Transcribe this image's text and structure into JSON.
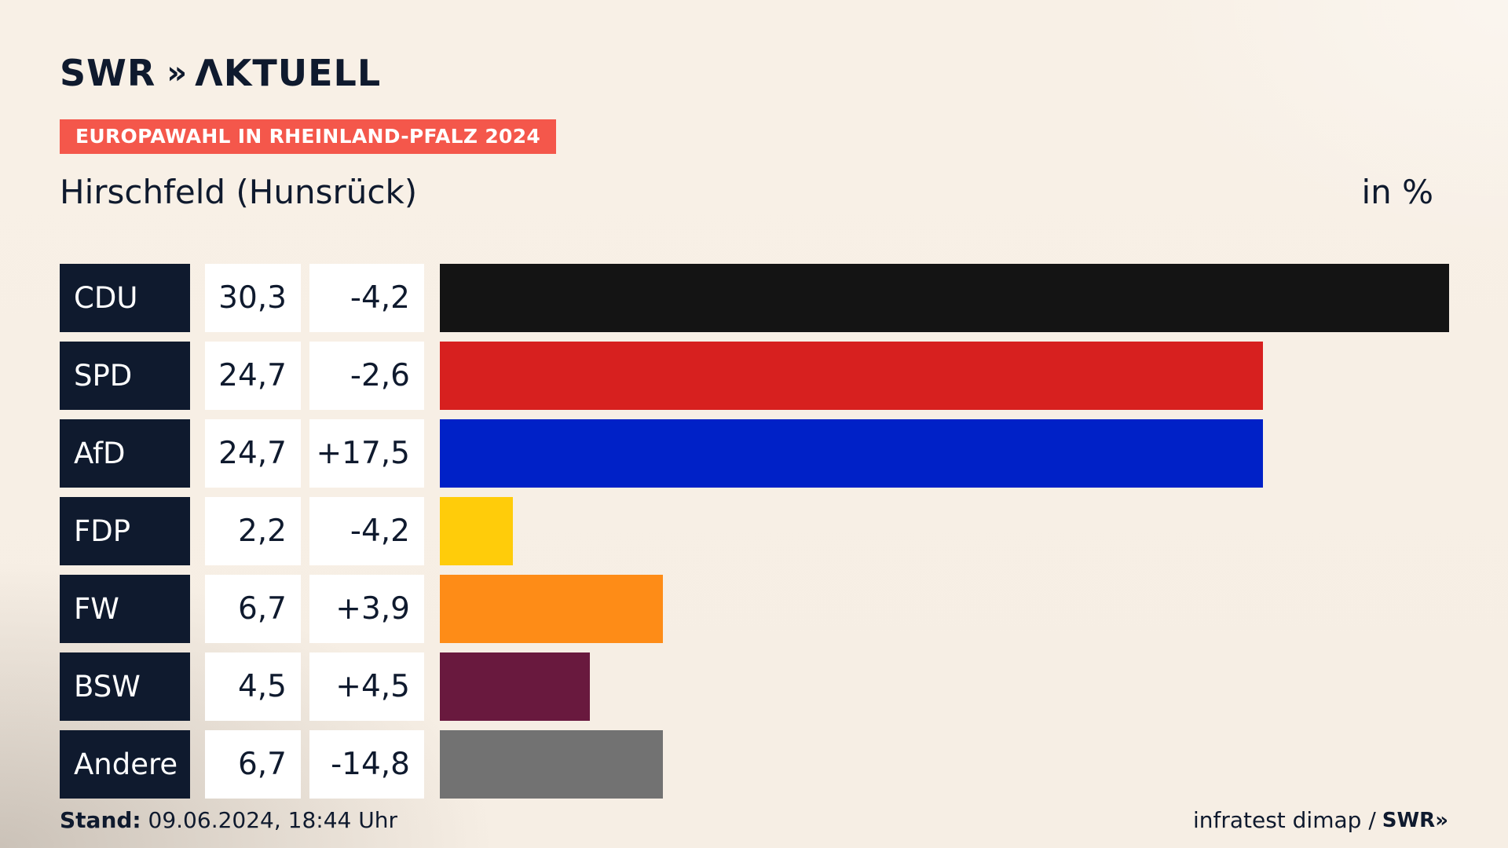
{
  "header": {
    "logo_text": "SWR",
    "logo_chevrons": "»",
    "logo_word": "ΛKTUELL",
    "tag": "EUROPAWAHL IN RHEINLAND-PFALZ 2024",
    "subtitle": "Hirschfeld (Hunsrück)",
    "unit": "in %"
  },
  "footer": {
    "stand_label": "Stand:",
    "stand_value": "09.06.2024, 18:44 Uhr",
    "source": "infratest dimap /",
    "brand": "SWR»"
  },
  "chart_data": {
    "type": "bar",
    "orientation": "horizontal",
    "title": "EUROPAWAHL IN RHEINLAND-PFALZ 2024",
    "subtitle": "Hirschfeld (Hunsrück)",
    "unit": "in %",
    "categories": [
      "CDU",
      "SPD",
      "AfD",
      "FDP",
      "FW",
      "BSW",
      "Andere"
    ],
    "values": [
      30.3,
      24.7,
      24.7,
      2.2,
      6.7,
      4.5,
      6.7
    ],
    "value_labels": [
      "30,3",
      "24,7",
      "24,7",
      "2,2",
      "6,7",
      "4,5",
      "6,7"
    ],
    "diff_labels": [
      "-4,2",
      "-2,6",
      "+17,5",
      "-4,2",
      "+3,9",
      "+4,5",
      "-14,8"
    ],
    "colors": [
      "#141414",
      "#d7201f",
      "#0021c7",
      "#ffcc0a",
      "#fe8c17",
      "#69193e",
      "#727272"
    ],
    "xlim": [
      0,
      30.3
    ]
  }
}
